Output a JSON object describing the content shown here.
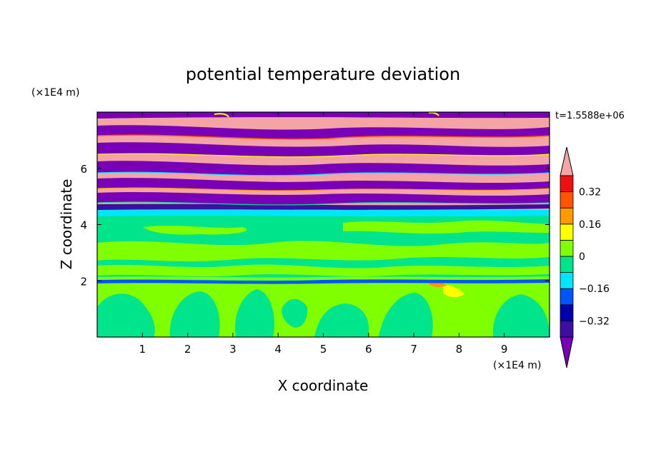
{
  "chart_data": {
    "type": "heatmap",
    "title": "potential temperature deviation",
    "xlabel": "X coordinate",
    "ylabel": "Z coordinate",
    "x_unit": "(×1E4 m)",
    "y_unit": "(×1E4 m)",
    "time_label": "t=1.5588e+06",
    "xlim": [
      0,
      10
    ],
    "ylim": [
      0,
      8
    ],
    "x_ticks": [
      "1",
      "2",
      "3",
      "4",
      "5",
      "6",
      "7",
      "8",
      "9"
    ],
    "y_ticks": [
      "2",
      "4",
      "6"
    ],
    "colorbar": {
      "extend": "both",
      "levels": [
        -0.4,
        -0.32,
        -0.24,
        -0.16,
        -0.08,
        0,
        0.08,
        0.16,
        0.24,
        0.32,
        0.4
      ],
      "tick_labels": [
        "0.32",
        "0.16",
        "0",
        "−0.16",
        "−0.32"
      ],
      "tick_values": [
        0.32,
        0.16,
        0,
        -0.16,
        -0.32
      ],
      "colors": [
        "#7a00b8",
        "#3d0fa0",
        "#0000aa",
        "#0055ff",
        "#00e5ff",
        "#00e58c",
        "#80ff00",
        "#ffff00",
        "#ff9900",
        "#ff5500",
        "#ee1111",
        "#f4a4a4"
      ]
    },
    "bands": [
      {
        "z_min": 0,
        "z_max": 2.0,
        "description_levels": [
          0.0,
          0.08
        ],
        "pattern": "convective cells"
      },
      {
        "z_min": 2.0,
        "z_max": 4.4,
        "description_levels": [
          0.0,
          0.08
        ],
        "pattern": "layered"
      },
      {
        "z_min": 4.4,
        "z_max": 4.6,
        "description_levels": [
          -0.08
        ],
        "pattern": "thin layer"
      },
      {
        "z_min": 4.6,
        "z_max": 8.0,
        "description_levels": [
          -0.4,
          0.4
        ],
        "pattern": "alternating strong layers"
      }
    ]
  }
}
